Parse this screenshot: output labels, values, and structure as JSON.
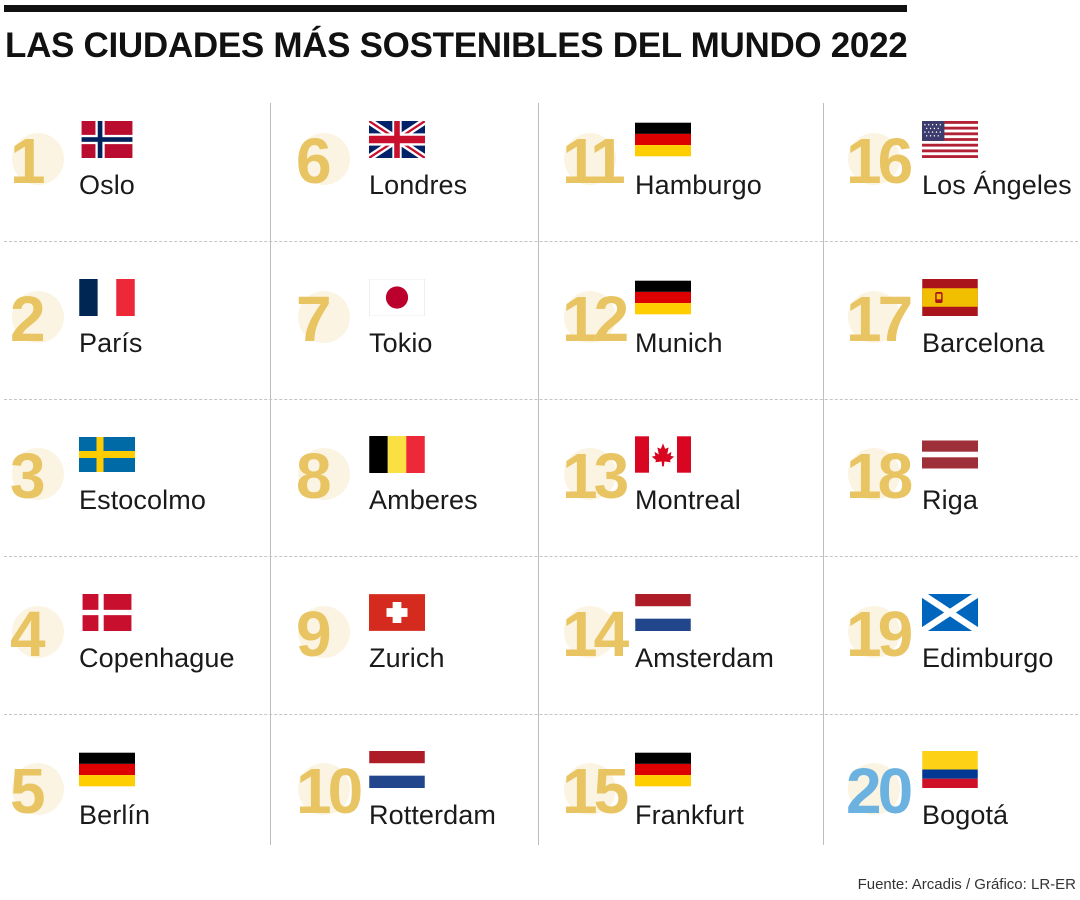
{
  "title": "LAS CIUDADES MÁS SOSTENIBLES DEL MUNDO 2022",
  "source": "Fuente: Arcadis / Gráfico: LR-ER",
  "colors": {
    "rank_number": "#e8c462",
    "rank_number_highlight": "#6cb2e0",
    "rank_circle": "#fbf4e2",
    "divider": "#c4c4c4"
  },
  "cities": [
    {
      "rank": "1",
      "name": "Oslo",
      "flag": "norway-flag"
    },
    {
      "rank": "2",
      "name": "París",
      "flag": "france-flag"
    },
    {
      "rank": "3",
      "name": "Estocolmo",
      "flag": "sweden-flag"
    },
    {
      "rank": "4",
      "name": "Copenhague",
      "flag": "denmark-flag"
    },
    {
      "rank": "5",
      "name": "Berlín",
      "flag": "germany-flag"
    },
    {
      "rank": "6",
      "name": "Londres",
      "flag": "united-kingdom-flag"
    },
    {
      "rank": "7",
      "name": "Tokio",
      "flag": "japan-flag"
    },
    {
      "rank": "8",
      "name": "Amberes",
      "flag": "belgium-flag"
    },
    {
      "rank": "9",
      "name": "Zurich",
      "flag": "switzerland-flag"
    },
    {
      "rank": "10",
      "name": "Rotterdam",
      "flag": "netherlands-flag"
    },
    {
      "rank": "11",
      "name": "Hamburgo",
      "flag": "germany-flag"
    },
    {
      "rank": "12",
      "name": "Munich",
      "flag": "germany-flag"
    },
    {
      "rank": "13",
      "name": "Montreal",
      "flag": "canada-flag"
    },
    {
      "rank": "14",
      "name": "Amsterdam",
      "flag": "netherlands-flag"
    },
    {
      "rank": "15",
      "name": "Frankfurt",
      "flag": "germany-flag"
    },
    {
      "rank": "16",
      "name": "Los Ángeles",
      "flag": "usa-flag"
    },
    {
      "rank": "17",
      "name": "Barcelona",
      "flag": "spain-flag"
    },
    {
      "rank": "18",
      "name": "Riga",
      "flag": "latvia-flag"
    },
    {
      "rank": "19",
      "name": "Edimburgo",
      "flag": "scotland-flag"
    },
    {
      "rank": "20",
      "name": "Bogotá",
      "flag": "colombia-flag",
      "highlight": true
    }
  ]
}
